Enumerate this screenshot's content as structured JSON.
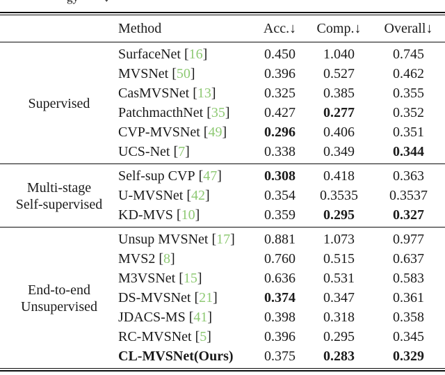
{
  "caption_fragment": {
    "left_text": "gy",
    "right_text": "↓"
  },
  "colors": {
    "citation_green": "#8ec973",
    "text": "#1b1b1b"
  },
  "table": {
    "headers": {
      "method": "Method",
      "acc": "Acc.↓",
      "comp": "Comp.↓",
      "overall": "Overall↓"
    },
    "bracket_open": "[",
    "bracket_close": "]",
    "sections": [
      {
        "category_lines": [
          "Supervised"
        ],
        "rows": [
          {
            "method": "SurfaceNet",
            "cite": "16",
            "acc": "0.450",
            "comp": "1.040",
            "overall": "0.745"
          },
          {
            "method": "MVSNet",
            "cite": "50",
            "acc": "0.396",
            "comp": "0.527",
            "overall": "0.462"
          },
          {
            "method": "CasMVSNet",
            "cite": "13",
            "acc": "0.325",
            "comp": "0.385",
            "overall": "0.355"
          },
          {
            "method": "PatchmacthNet",
            "cite": "35",
            "acc": "0.427",
            "comp": "0.277",
            "overall": "0.352"
          },
          {
            "method": "CVP-MVSNet",
            "cite": "49",
            "acc": "0.296",
            "comp": "0.406",
            "overall": "0.351"
          },
          {
            "method": "UCS-Net",
            "cite": "7",
            "acc": "0.338",
            "comp": "0.349",
            "overall": "0.344"
          }
        ]
      },
      {
        "category_lines": [
          "Multi-stage",
          "Self-supervised"
        ],
        "rows": [
          {
            "method": "Self-sup CVP",
            "cite": "47",
            "acc": "0.308",
            "comp": "0.418",
            "overall": "0.363"
          },
          {
            "method": "U-MVSNet",
            "cite": "42",
            "acc": "0.354",
            "comp": "0.3535",
            "overall": "0.3537"
          },
          {
            "method": "KD-MVS",
            "cite": "10",
            "acc": "0.359",
            "comp": "0.295",
            "overall": "0.327"
          }
        ]
      },
      {
        "category_lines": [
          "End-to-end",
          "Unsupervised"
        ],
        "rows": [
          {
            "method": "Unsup MVSNet",
            "cite": "17",
            "acc": "0.881",
            "comp": "1.073",
            "overall": "0.977"
          },
          {
            "method": "MVS2",
            "cite": "8",
            "acc": "0.760",
            "comp": "0.515",
            "overall": "0.637"
          },
          {
            "method": "M3VSNet",
            "cite": "15",
            "acc": "0.636",
            "comp": "0.531",
            "overall": "0.583"
          },
          {
            "method": "DS-MVSNet",
            "cite": "21",
            "acc": "0.374",
            "comp": "0.347",
            "overall": "0.361"
          },
          {
            "method": "JDACS-MS",
            "cite": "41",
            "acc": "0.398",
            "comp": "0.318",
            "overall": "0.358"
          },
          {
            "method": "RC-MVSNet",
            "cite": "5",
            "acc": "0.396",
            "comp": "0.295",
            "overall": "0.345"
          },
          {
            "method": "CL-MVSNet(Ours)",
            "cite": "",
            "acc": "0.375",
            "comp": "0.283",
            "overall": "0.329"
          }
        ]
      }
    ]
  }
}
